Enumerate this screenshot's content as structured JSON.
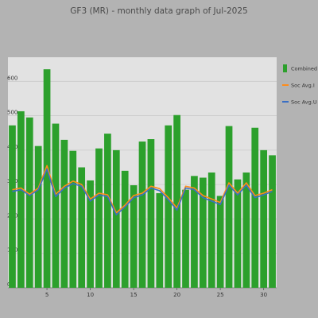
{
  "chart_data": {
    "type": "bar",
    "title": "GF3 (MR) - monthly data graph of Jul-2025",
    "x": [
      1,
      2,
      3,
      4,
      5,
      6,
      7,
      8,
      9,
      10,
      11,
      12,
      13,
      14,
      15,
      16,
      17,
      18,
      19,
      20,
      21,
      22,
      23,
      24,
      25,
      26,
      27,
      28,
      29,
      30,
      31
    ],
    "x_ticks": [
      5,
      10,
      15,
      20,
      25,
      30
    ],
    "y_ticks": [
      0,
      100,
      200,
      300,
      400,
      500,
      600
    ],
    "ylim": [
      0,
      670
    ],
    "xlim": [
      0.5,
      31.5
    ],
    "grid": "horizontal",
    "legend_position": "right",
    "series": [
      {
        "name": "Combined Inlet",
        "type": "bar",
        "color": "#2ca02c",
        "values": [
          472,
          513,
          495,
          412,
          635,
          477,
          430,
          398,
          350,
          312,
          405,
          448,
          400,
          340,
          298,
          425,
          432,
          275,
          472,
          502,
          285,
          325,
          320,
          335,
          267,
          470,
          315,
          335,
          465,
          400,
          385
        ]
      },
      {
        "name": "Soc Avg.I",
        "type": "line",
        "color": "#ff8c1a",
        "values": [
          285,
          290,
          272,
          290,
          355,
          272,
          295,
          310,
          300,
          258,
          275,
          270,
          218,
          240,
          268,
          275,
          295,
          288,
          262,
          232,
          295,
          290,
          268,
          258,
          248,
          305,
          275,
          305,
          268,
          275,
          285
        ]
      },
      {
        "name": "Soc Avg.U",
        "type": "line",
        "color": "#3a6fc4",
        "values": [
          280,
          285,
          268,
          285,
          345,
          265,
          290,
          303,
          295,
          252,
          270,
          265,
          212,
          235,
          262,
          270,
          290,
          282,
          256,
          226,
          290,
          285,
          262,
          252,
          242,
          298,
          270,
          298,
          262,
          270,
          280
        ]
      }
    ]
  }
}
